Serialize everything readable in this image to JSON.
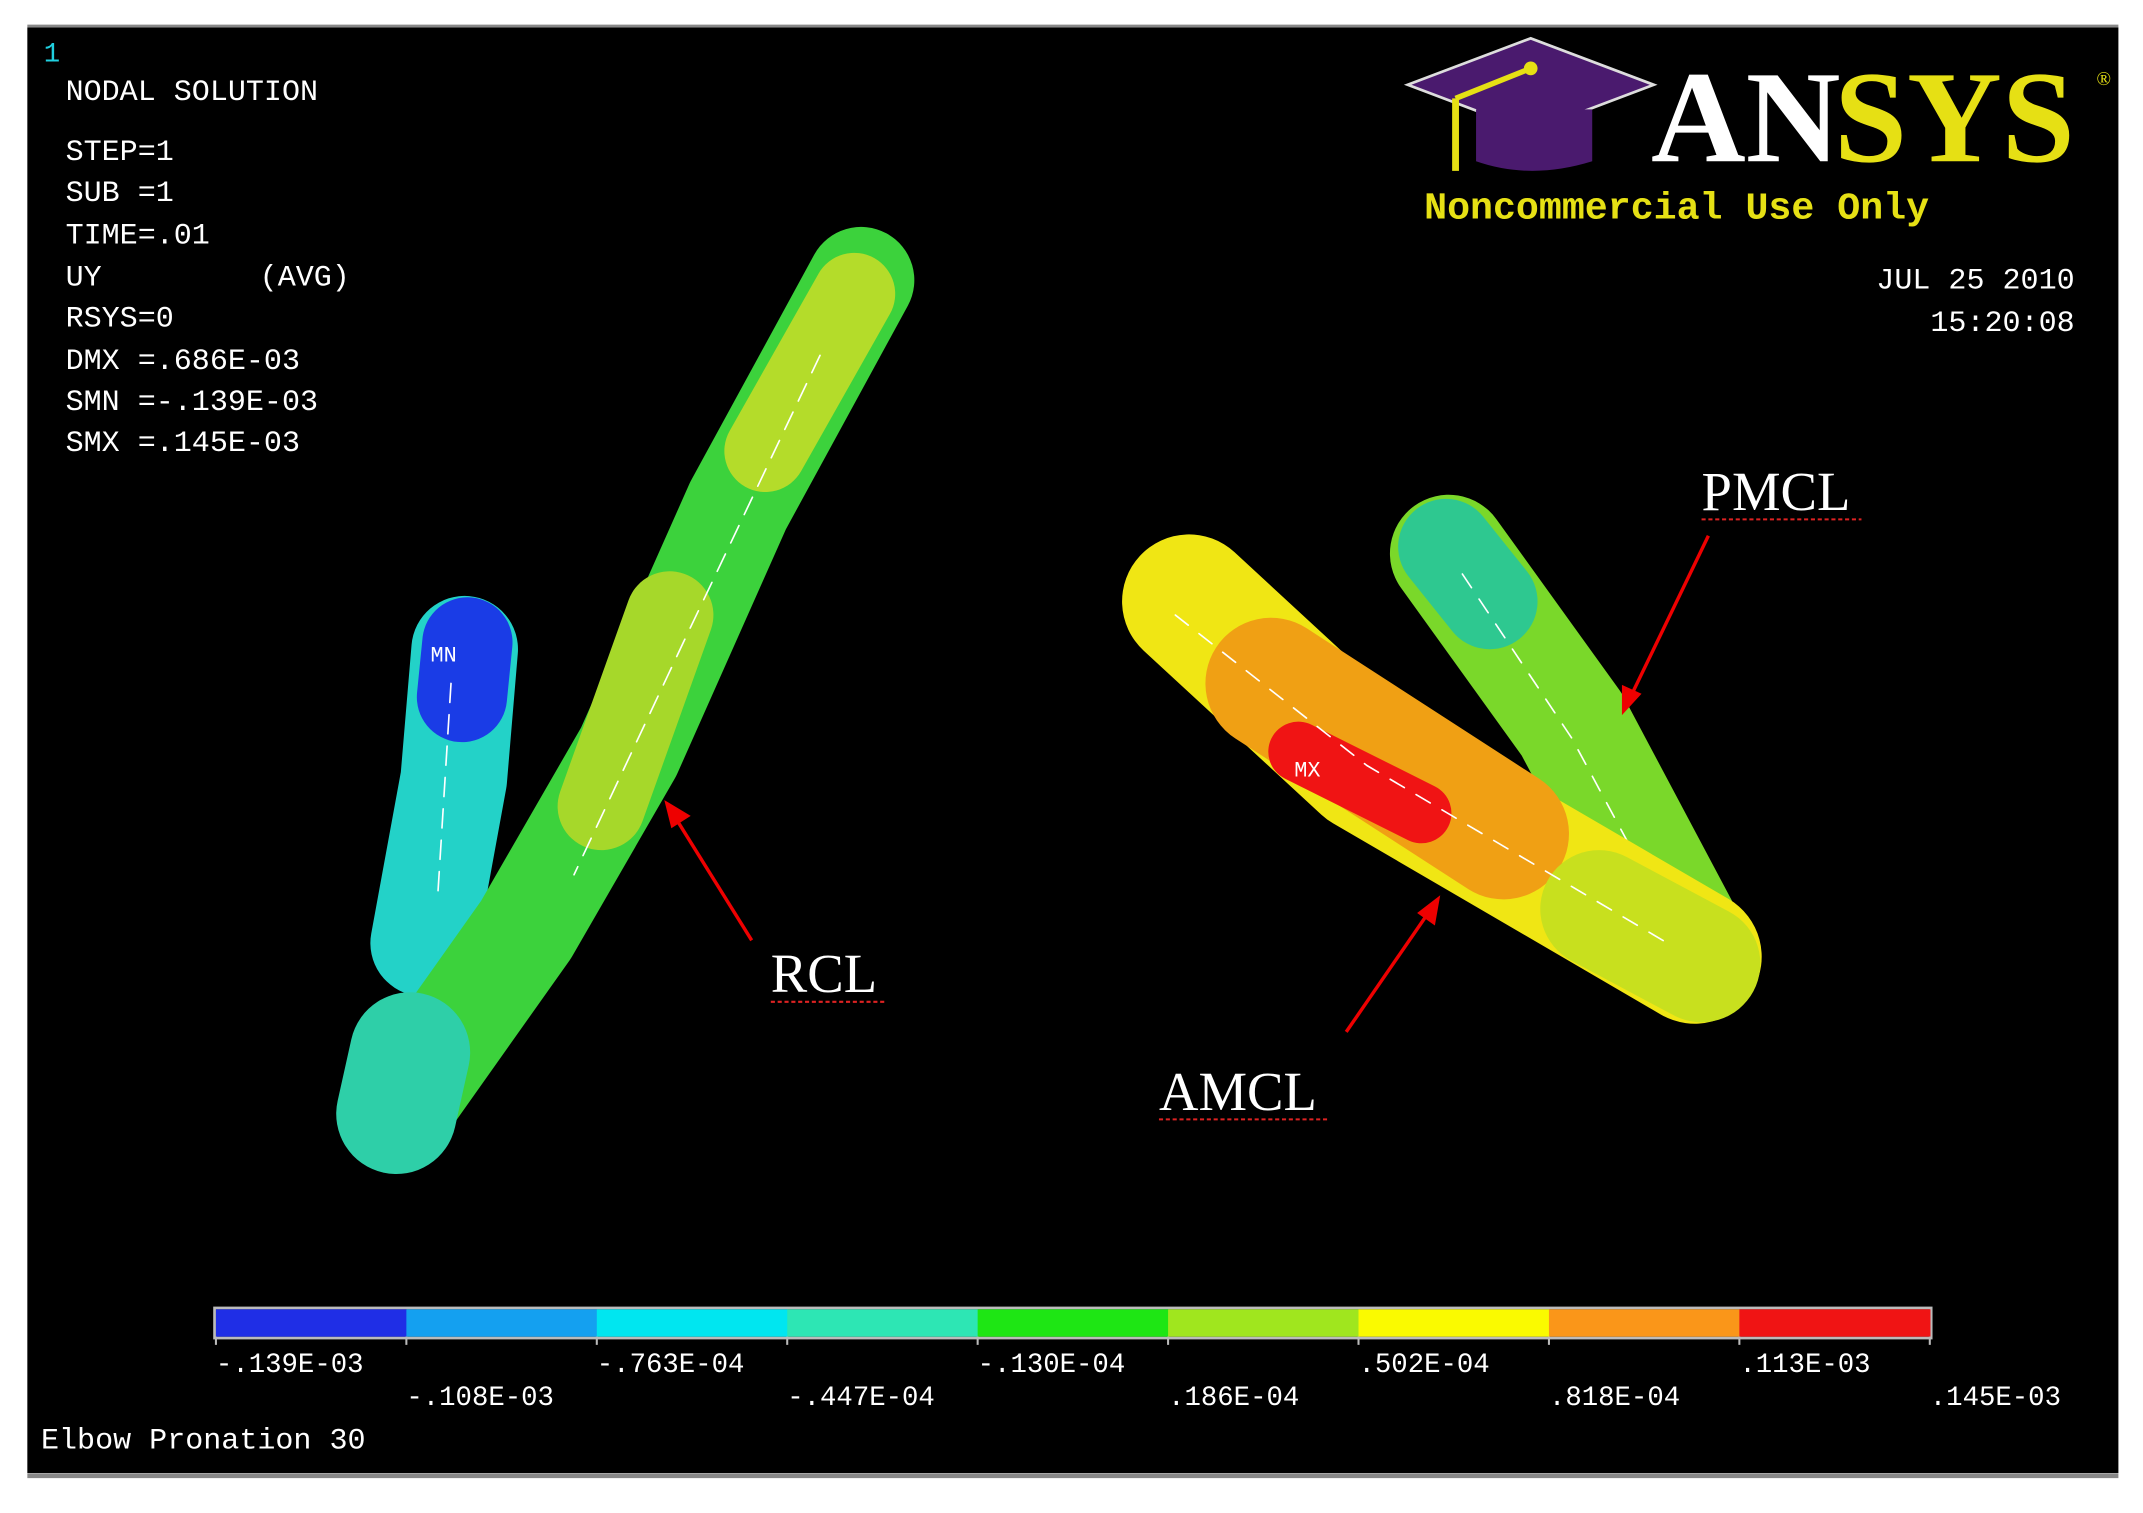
{
  "header": {
    "window_number": "1",
    "solution": "NODAL SOLUTION",
    "info": [
      "STEP=1",
      "SUB =1",
      "TIME=.01",
      "UY",
      "RSYS=0",
      "DMX =.686E-03",
      "SMN =-.139E-03",
      "SMX =.145E-03"
    ],
    "avg": "(AVG)"
  },
  "logo": {
    "white_part": "AN",
    "yellow_part": "SYS",
    "registered": "®",
    "notice": "Noncommercial Use Only"
  },
  "timestamp": {
    "date": "JUL 25 2010",
    "time": "15:20:08"
  },
  "markers": {
    "min": "MN",
    "max": "MX"
  },
  "callouts": {
    "rcl": "RCL",
    "amcl": "AMCL",
    "pmcl": "PMCL"
  },
  "legend": {
    "colors": [
      "#1f2ee6",
      "#14a0f0",
      "#00e6f0",
      "#2de6b4",
      "#1ee614",
      "#a0e61e",
      "#fafa00",
      "#fa9619",
      "#f01414"
    ],
    "labels": [
      "-.139E-03",
      "-.108E-03",
      "-.763E-04",
      "-.447E-04",
      "-.130E-04",
      ".186E-04",
      ".502E-04",
      ".818E-04",
      ".113E-03",
      ".145E-03"
    ]
  },
  "footer": {
    "caption": "Elbow Pronation 30"
  }
}
